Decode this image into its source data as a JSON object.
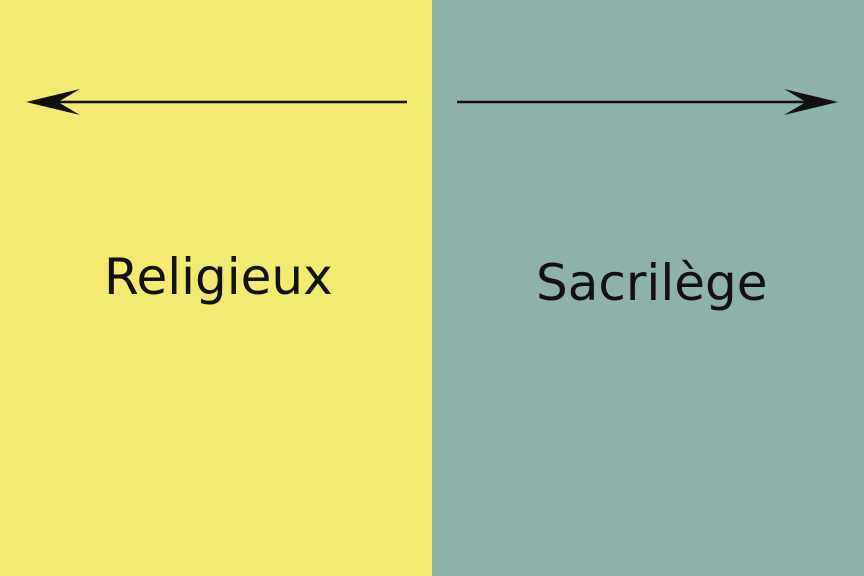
{
  "panels": {
    "left": {
      "label": "Religieux",
      "background": "#f2ea71",
      "arrow_direction": "left"
    },
    "right": {
      "label": "Sacrilège",
      "background": "#8db1ab",
      "arrow_direction": "right"
    }
  },
  "colors": {
    "text": "#111111",
    "arrow": "#111111"
  }
}
